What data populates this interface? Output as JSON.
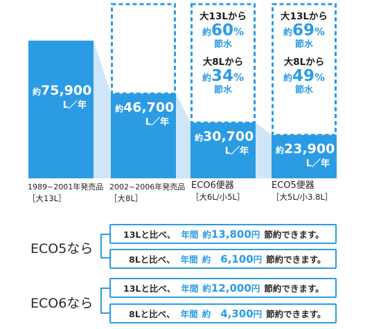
{
  "colors": {
    "bar": "#2b9be4",
    "connector": "#cfe6f8",
    "text_dark": "#1a1a1a"
  },
  "chart_data": {
    "type": "bar",
    "unit": "L／年",
    "ylim": [
      0,
      96000
    ],
    "categories": [
      {
        "line1": "1989~2001年発売品",
        "line2": "［大13L］"
      },
      {
        "line1": "2002~2006年発売品",
        "line2": "［大8L］"
      },
      {
        "line1": "ECO6便器",
        "line2": "［大6L/小5L］"
      },
      {
        "line1": "ECO5便器",
        "line2": "［大5L/小3.8L］"
      }
    ],
    "values": [
      75900,
      46700,
      30700,
      23900
    ],
    "value_prefix": "約",
    "value_labels": [
      "75,900",
      "46,700",
      "30,700",
      "23,900"
    ],
    "savings": [
      null,
      null,
      [
        {
          "from": "大13Lから",
          "prefix": "約",
          "pct": "60",
          "pct_sign": "%",
          "label": "節水"
        },
        {
          "from": "大8Lから",
          "prefix": "約",
          "pct": "34",
          "pct_sign": "%",
          "label": "節水"
        }
      ],
      [
        {
          "from": "大13Lから",
          "prefix": "約",
          "pct": "69",
          "pct_sign": "%",
          "label": "節水"
        },
        {
          "from": "大8Lから",
          "prefix": "約",
          "pct": "49",
          "pct_sign": "%",
          "label": "節水"
        }
      ]
    ]
  },
  "comparisons": [
    {
      "label": "ECO5なら",
      "rows": [
        {
          "compare": "13Lと比べ、",
          "period": "年間",
          "prefix": "約",
          "amount": "13,800",
          "unit": "円",
          "suffix": "節約できます。"
        },
        {
          "compare": "8Lと比べ、",
          "period": "年間",
          "prefix": "約",
          "amount": "6,100",
          "unit": "円",
          "suffix": "節約できます。"
        }
      ]
    },
    {
      "label": "ECO6なら",
      "rows": [
        {
          "compare": "13Lと比べ、",
          "period": "年間",
          "prefix": "約",
          "amount": "12,000",
          "unit": "円",
          "suffix": "節約できます。"
        },
        {
          "compare": "8Lと比べ、",
          "period": "年間",
          "prefix": "約",
          "amount": "4,300",
          "unit": "円",
          "suffix": "節約できます。"
        }
      ]
    }
  ]
}
